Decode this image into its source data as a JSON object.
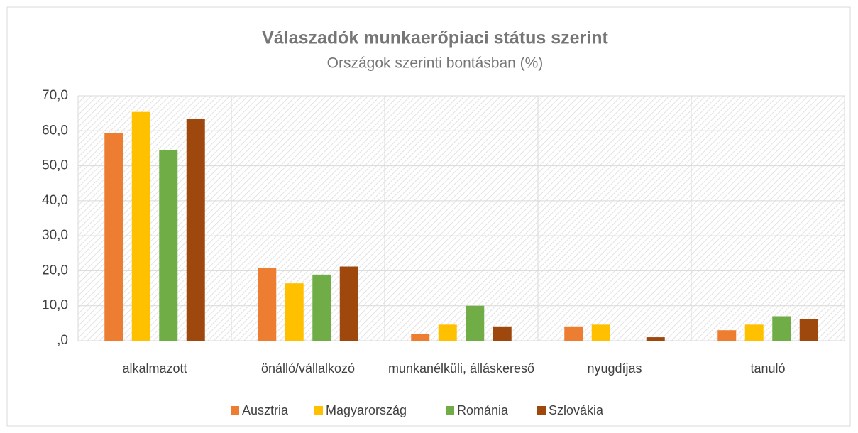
{
  "chart_data": {
    "type": "bar",
    "title": "Válaszadók munkaerőpiaci státus szerint",
    "subtitle": "Országok szerinti bontásban (%)",
    "categories": [
      "alkalmazott",
      "önálló/vállalkozó",
      "munkanélküli, álláskereső",
      "nyugdíjas",
      "tanuló"
    ],
    "series": [
      {
        "name": "Ausztria",
        "color": "#ed7d31",
        "values": [
          59.3,
          20.8,
          2.0,
          4.1,
          3.0
        ]
      },
      {
        "name": "Magyarország",
        "color": "#ffc000",
        "values": [
          65.4,
          16.4,
          4.6,
          4.6,
          4.6
        ]
      },
      {
        "name": "Románia",
        "color": "#70ad47",
        "values": [
          54.4,
          18.9,
          10.0,
          0,
          7.0
        ]
      },
      {
        "name": "Szlovákia",
        "color": "#9e480e",
        "values": [
          63.5,
          21.2,
          4.1,
          1.0,
          6.1
        ]
      }
    ],
    "ylim": [
      0,
      70
    ],
    "yticks": [
      {
        "value": 0,
        "label": ",0"
      },
      {
        "value": 10,
        "label": "10,0"
      },
      {
        "value": 20,
        "label": "20,0"
      },
      {
        "value": 30,
        "label": "30,0"
      },
      {
        "value": 40,
        "label": "40,0"
      },
      {
        "value": 50,
        "label": "50,0"
      },
      {
        "value": 60,
        "label": "60,0"
      },
      {
        "value": 70,
        "label": "70,0"
      }
    ],
    "grid": true,
    "legend": "bottom"
  }
}
